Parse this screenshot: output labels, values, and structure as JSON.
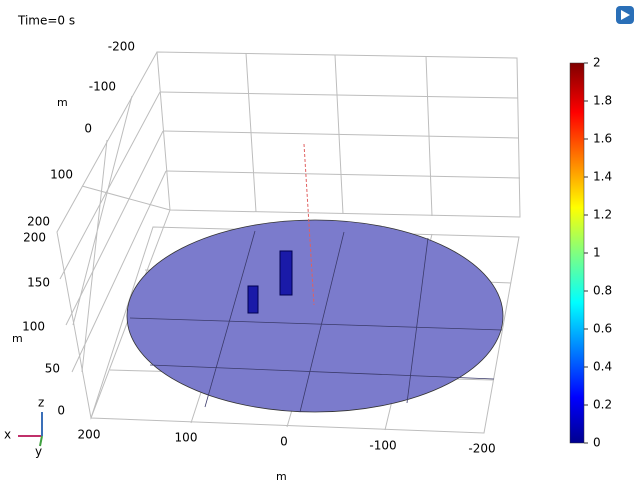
{
  "title": "Time=0 s",
  "back_axis": {
    "label": "m",
    "ticks": [
      -200,
      -100,
      0,
      100,
      200
    ]
  },
  "z_axis": {
    "label": "m",
    "ticks": [
      200,
      150,
      100,
      50,
      0
    ]
  },
  "x_axis": {
    "label": "m",
    "ticks": [
      200,
      100,
      0,
      -100,
      -200
    ]
  },
  "colorbar": {
    "ticks": [
      2,
      1.8,
      1.6,
      1.4,
      1.2,
      1,
      0.8,
      0.6,
      0.4,
      0.2,
      0
    ]
  },
  "triad": {
    "x": "x",
    "y": "y",
    "z": "z"
  }
}
